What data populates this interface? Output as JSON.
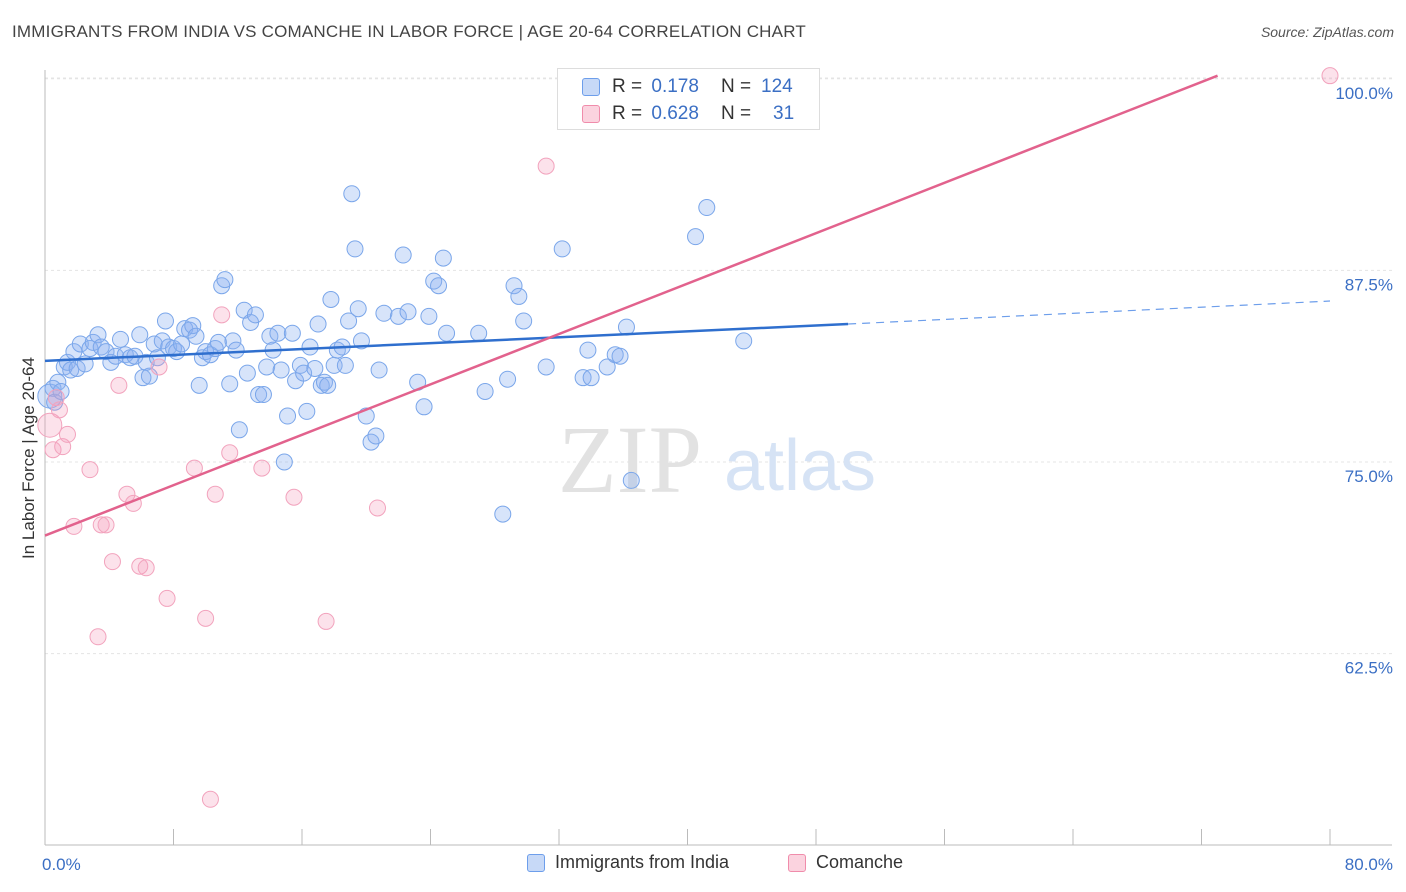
{
  "title": "IMMIGRANTS FROM INDIA VS COMANCHE IN LABOR FORCE | AGE 20-64 CORRELATION CHART",
  "source": "Source: ZipAtlas.com",
  "watermark": {
    "zip": "ZIP",
    "atlas": "atlas"
  },
  "legend": {
    "items": [
      {
        "label": "Immigrants from India",
        "color": "#6d9eeb"
      },
      {
        "label": "Comanche",
        "color": "#f08cab"
      }
    ],
    "stats": [
      {
        "r_label": "R =",
        "r_value": "0.178",
        "n_label": "N =",
        "n_value": "124"
      },
      {
        "r_label": "R =",
        "r_value": "0.628",
        "n_label": "N =",
        "n_value": "31"
      }
    ]
  },
  "chart_data": {
    "type": "scatter",
    "xlabel": "",
    "ylabel": "In Labor Force | Age 20-64",
    "xlim": [
      0,
      80
    ],
    "ylim": [
      51.5,
      102
    ],
    "x_tick_labels": [
      "0.0%",
      "80.0%"
    ],
    "y_ticks": [
      62.5,
      75.0,
      87.5,
      100.0
    ],
    "y_tick_labels": [
      "62.5%",
      "75.0%",
      "87.5%",
      "100.0%"
    ],
    "grid": true,
    "legend_position": "top-center",
    "series": [
      {
        "name": "Immigrants from India",
        "color": "#6d9eeb",
        "trend": {
          "x": [
            0,
            50
          ],
          "y": [
            81.6,
            84.0
          ],
          "dashed_extension": {
            "x": [
              50,
              80
            ],
            "y": [
              84.0,
              85.5
            ]
          }
        },
        "points": [
          [
            0.3,
            79.3
          ],
          [
            0.5,
            79.8
          ],
          [
            0.6,
            78.9
          ],
          [
            0.8,
            80.2
          ],
          [
            1.0,
            79.6
          ],
          [
            1.2,
            81.2
          ],
          [
            1.4,
            81.5
          ],
          [
            1.6,
            81.0
          ],
          [
            1.8,
            82.2
          ],
          [
            2.0,
            81.1
          ],
          [
            2.2,
            82.7
          ],
          [
            2.5,
            81.4
          ],
          [
            2.8,
            82.4
          ],
          [
            3.0,
            82.8
          ],
          [
            3.3,
            83.3
          ],
          [
            3.5,
            82.5
          ],
          [
            3.8,
            82.2
          ],
          [
            4.1,
            81.5
          ],
          [
            4.4,
            81.9
          ],
          [
            4.7,
            83.0
          ],
          [
            5.0,
            82.0
          ],
          [
            5.3,
            81.8
          ],
          [
            5.6,
            81.9
          ],
          [
            5.9,
            83.3
          ],
          [
            6.1,
            80.5
          ],
          [
            6.3,
            81.5
          ],
          [
            6.5,
            80.6
          ],
          [
            6.8,
            82.7
          ],
          [
            7.0,
            81.8
          ],
          [
            7.3,
            82.9
          ],
          [
            7.5,
            84.2
          ],
          [
            7.7,
            82.5
          ],
          [
            8.0,
            82.4
          ],
          [
            8.2,
            82.2
          ],
          [
            8.5,
            82.7
          ],
          [
            8.7,
            83.7
          ],
          [
            9.0,
            83.6
          ],
          [
            9.2,
            83.9
          ],
          [
            9.4,
            83.2
          ],
          [
            9.6,
            80.0
          ],
          [
            9.8,
            81.8
          ],
          [
            10.0,
            82.2
          ],
          [
            10.3,
            82.0
          ],
          [
            10.6,
            82.4
          ],
          [
            10.8,
            82.8
          ],
          [
            11.0,
            86.5
          ],
          [
            11.2,
            86.9
          ],
          [
            11.5,
            80.1
          ],
          [
            11.7,
            82.9
          ],
          [
            11.9,
            82.3
          ],
          [
            12.1,
            77.1
          ],
          [
            12.4,
            84.9
          ],
          [
            12.6,
            80.8
          ],
          [
            12.8,
            84.1
          ],
          [
            13.1,
            84.6
          ],
          [
            13.3,
            79.4
          ],
          [
            13.6,
            79.4
          ],
          [
            13.8,
            81.2
          ],
          [
            14.0,
            83.2
          ],
          [
            14.2,
            82.3
          ],
          [
            14.5,
            83.4
          ],
          [
            14.7,
            81.0
          ],
          [
            14.9,
            75.0
          ],
          [
            15.1,
            78.0
          ],
          [
            15.4,
            83.4
          ],
          [
            15.6,
            80.3
          ],
          [
            15.9,
            81.3
          ],
          [
            16.1,
            80.8
          ],
          [
            16.3,
            78.3
          ],
          [
            16.5,
            82.5
          ],
          [
            16.8,
            81.1
          ],
          [
            17.0,
            84.0
          ],
          [
            17.2,
            80.0
          ],
          [
            17.4,
            80.2
          ],
          [
            17.6,
            80.0
          ],
          [
            17.8,
            85.6
          ],
          [
            18.0,
            81.3
          ],
          [
            18.2,
            82.3
          ],
          [
            18.5,
            82.5
          ],
          [
            18.7,
            81.3
          ],
          [
            18.9,
            84.2
          ],
          [
            19.1,
            92.5
          ],
          [
            19.3,
            88.9
          ],
          [
            19.5,
            85.0
          ],
          [
            19.7,
            82.9
          ],
          [
            20.0,
            78.0
          ],
          [
            20.3,
            76.3
          ],
          [
            20.6,
            76.7
          ],
          [
            20.8,
            81.0
          ],
          [
            21.1,
            84.7
          ],
          [
            22.0,
            84.5
          ],
          [
            22.3,
            88.5
          ],
          [
            22.6,
            84.8
          ],
          [
            23.2,
            80.2
          ],
          [
            23.6,
            78.6
          ],
          [
            23.9,
            84.5
          ],
          [
            24.2,
            86.8
          ],
          [
            24.5,
            86.5
          ],
          [
            24.8,
            88.3
          ],
          [
            25.0,
            83.4
          ],
          [
            27.0,
            83.4
          ],
          [
            27.4,
            79.6
          ],
          [
            28.5,
            71.6
          ],
          [
            28.8,
            80.4
          ],
          [
            29.2,
            86.5
          ],
          [
            29.5,
            85.8
          ],
          [
            29.8,
            84.2
          ],
          [
            31.2,
            81.2
          ],
          [
            32.2,
            88.9
          ],
          [
            33.5,
            80.5
          ],
          [
            33.8,
            82.3
          ],
          [
            34.0,
            80.5
          ],
          [
            35.0,
            81.2
          ],
          [
            35.5,
            82.0
          ],
          [
            35.8,
            81.9
          ],
          [
            36.2,
            83.8
          ],
          [
            36.5,
            73.8
          ],
          [
            40.5,
            89.7
          ],
          [
            41.2,
            91.6
          ],
          [
            43.5,
            82.9
          ]
        ]
      },
      {
        "name": "Comanche",
        "color": "#f08cab",
        "trend": {
          "x": [
            0,
            73
          ],
          "y": [
            70.2,
            100.2
          ]
        },
        "points": [
          [
            0.3,
            77.4
          ],
          [
            0.5,
            75.8
          ],
          [
            0.7,
            79.2
          ],
          [
            0.9,
            78.4
          ],
          [
            1.1,
            76.0
          ],
          [
            1.4,
            76.8
          ],
          [
            1.8,
            70.8
          ],
          [
            2.8,
            74.5
          ],
          [
            3.3,
            63.6
          ],
          [
            3.5,
            70.9
          ],
          [
            3.8,
            70.9
          ],
          [
            4.2,
            68.5
          ],
          [
            4.6,
            80.0
          ],
          [
            5.1,
            72.9
          ],
          [
            5.5,
            72.3
          ],
          [
            5.9,
            68.2
          ],
          [
            6.3,
            68.1
          ],
          [
            7.1,
            81.2
          ],
          [
            7.6,
            66.1
          ],
          [
            9.3,
            74.6
          ],
          [
            10.0,
            64.8
          ],
          [
            10.3,
            53.0
          ],
          [
            10.6,
            72.9
          ],
          [
            11.0,
            84.6
          ],
          [
            11.5,
            75.6
          ],
          [
            13.5,
            74.6
          ],
          [
            15.5,
            72.7
          ],
          [
            17.5,
            64.6
          ],
          [
            20.7,
            72.0
          ],
          [
            31.2,
            94.3
          ],
          [
            80.0,
            100.2
          ]
        ]
      }
    ]
  }
}
